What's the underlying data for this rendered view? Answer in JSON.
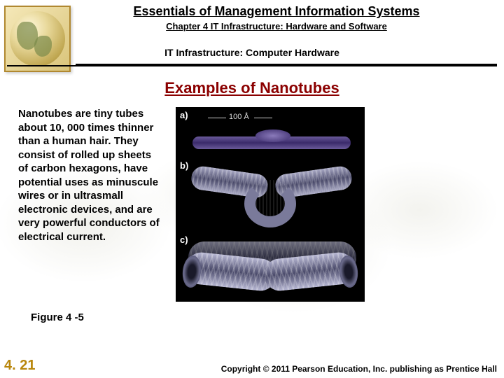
{
  "header": {
    "book_title": "Essentials of Management Information Systems",
    "chapter_line": "Chapter 4 IT Infrastructure: Hardware and Software",
    "section_line": "IT Infrastructure: Computer Hardware"
  },
  "slide_title": "Examples of Nanotubes",
  "body_text": "Nanotubes are tiny tubes about 10, 000 times thinner than a human hair. They consist of rolled up sheets of carbon hexagons, have potential uses as minuscule wires or in ultrasmall electronic devices, and are very powerful conductors of electrical current.",
  "figure": {
    "panel_a_label": "a)",
    "panel_b_label": "b)",
    "panel_c_label": "c)",
    "scale_label": "100 Å",
    "caption": "Figure 4 -5",
    "colors": {
      "bg": "#000000",
      "tube_purple": "#6a5a9a",
      "tube_gray": "#a8a8c4"
    }
  },
  "footer": {
    "slide_number": "4. 21",
    "copyright": "Copyright © 2011 Pearson Education, Inc. publishing as Prentice Hall"
  },
  "colors": {
    "title_red": "#8b0000",
    "slide_num_gold": "#b8860b",
    "text": "#000000",
    "background": "#ffffff"
  }
}
